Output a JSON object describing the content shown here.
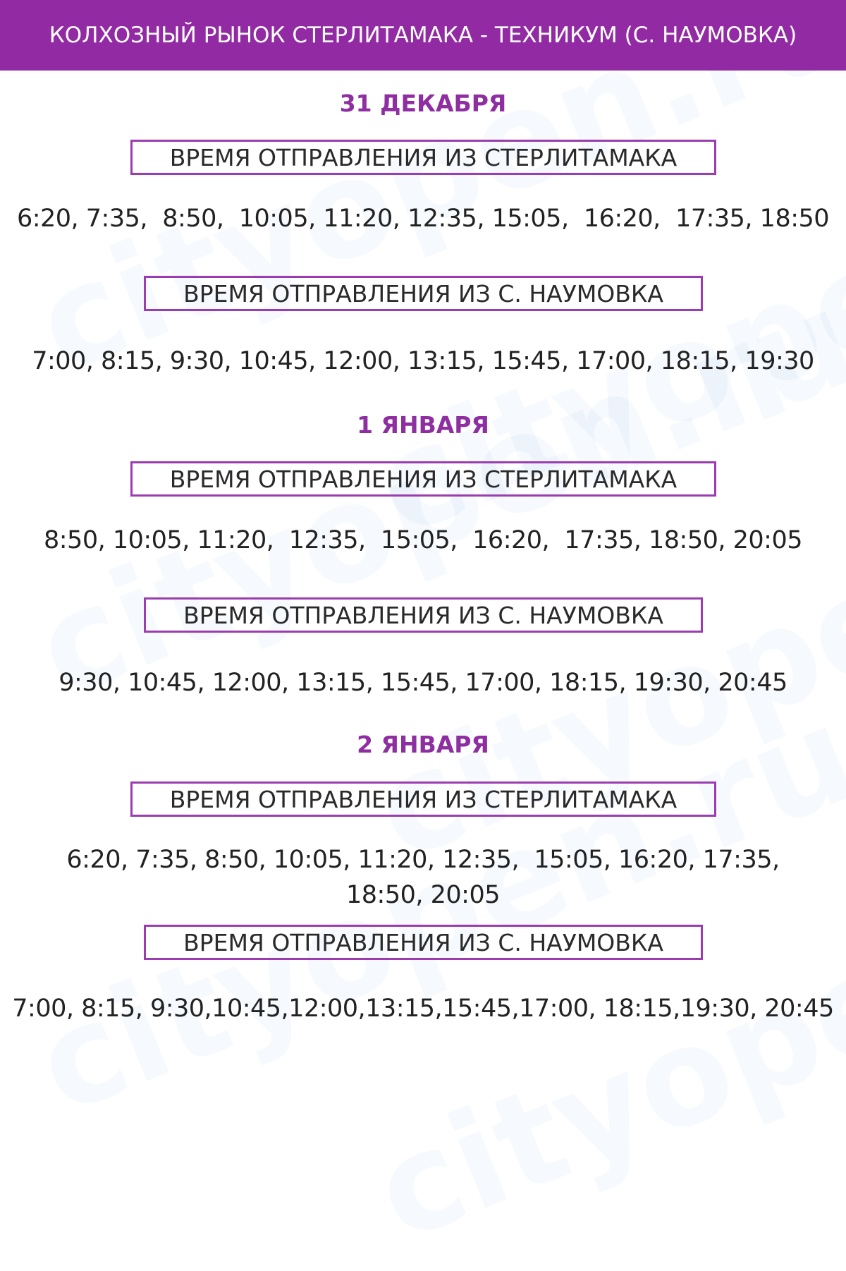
{
  "header": {
    "title": "КОЛХОЗНЫЙ  РЫНОК СТЕРЛИТАМАКА - ТЕХНИКУМ (С. НАУМОВКА)"
  },
  "watermark": "cityopen.ru",
  "colors": {
    "header_bg": "#922ba3",
    "accent": "#8e2ea0"
  },
  "days": [
    {
      "date": "31 ДЕКАБРЯ",
      "from_sterlitamak_label": "ВРЕМЯ ОТПРАВЛЕНИЯ ИЗ СТЕРЛИТАМАКА",
      "from_sterlitamak_times": "6:20, 7:35,  8:50,  10:05, 11:20, 12:35, 15:05,  16:20,  17:35, 18:50",
      "from_naumovka_label": "ВРЕМЯ ОТПРАВЛЕНИЯ ИЗ С. НАУМОВКА",
      "from_naumovka_times": "7:00, 8:15, 9:30, 10:45, 12:00, 13:15, 15:45, 17:00, 18:15, 19:30"
    },
    {
      "date": "1 ЯНВАРЯ",
      "from_sterlitamak_label": "ВРЕМЯ ОТПРАВЛЕНИЯ ИЗ СТЕРЛИТАМАКА",
      "from_sterlitamak_times": "8:50, 10:05, 11:20,  12:35,  15:05,  16:20,  17:35, 18:50, 20:05",
      "from_naumovka_label": "ВРЕМЯ ОТПРАВЛЕНИЯ ИЗ С. НАУМОВКА",
      "from_naumovka_times": "9:30, 10:45, 12:00, 13:15, 15:45, 17:00, 18:15, 19:30, 20:45"
    },
    {
      "date": "2 ЯНВАРЯ",
      "from_sterlitamak_label": "ВРЕМЯ ОТПРАВЛЕНИЯ ИЗ СТЕРЛИТАМАКА",
      "from_sterlitamak_times": "6:20, 7:35, 8:50, 10:05, 11:20, 12:35,  15:05, 16:20, 17:35,\n18:50, 20:05",
      "from_naumovka_label": "ВРЕМЯ ОТПРАВЛЕНИЯ ИЗ С. НАУМОВКА",
      "from_naumovka_times": "7:00, 8:15, 9:30,10:45,12:00,13:15,15:45,17:00, 18:15,19:30, 20:45"
    }
  ]
}
